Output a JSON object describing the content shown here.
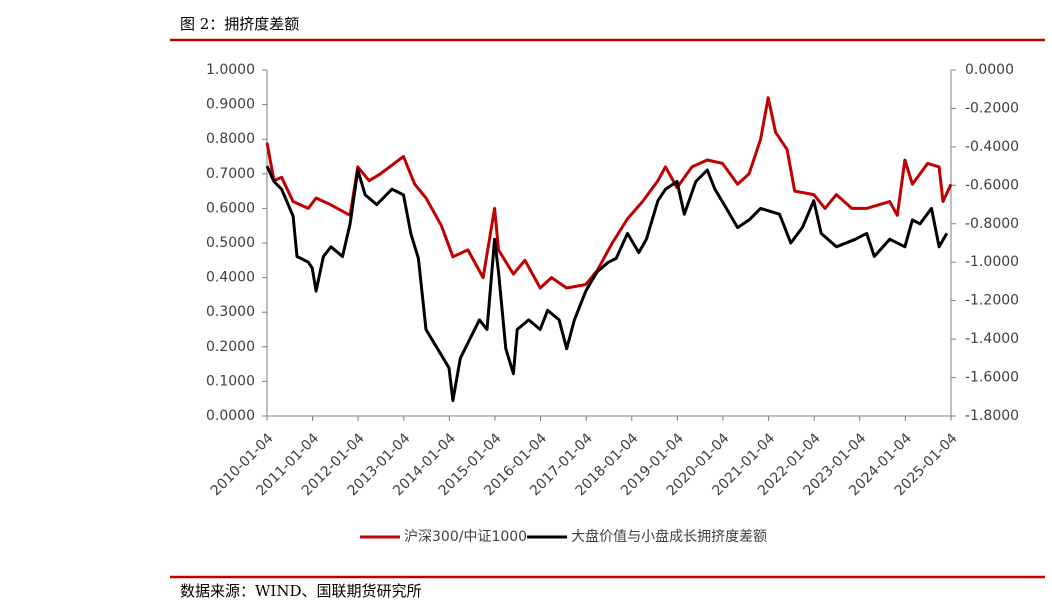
{
  "title": "图 2：拥挤度差额",
  "source": "数据来源：WIND、国联期货研究所",
  "chart_data": {
    "type": "line",
    "xlim": [
      "2010-01-04",
      "2025-01-04"
    ],
    "xticks": [
      "2010-01-04",
      "2011-01-04",
      "2012-01-04",
      "2013-01-04",
      "2014-01-04",
      "2015-01-04",
      "2016-01-04",
      "2017-01-04",
      "2018-01-04",
      "2019-01-04",
      "2020-01-04",
      "2021-01-04",
      "2022-01-04",
      "2023-01-04",
      "2024-01-04",
      "2025-01-04"
    ],
    "ylim": [
      0,
      1
    ],
    "yticks": [
      {
        "value": 0,
        "label": "0.0000"
      },
      {
        "value": 0.1,
        "label": "0.1000"
      },
      {
        "value": 0.2,
        "label": "0.2000"
      },
      {
        "value": 0.3,
        "label": "0.3000"
      },
      {
        "value": 0.4,
        "label": "0.4000"
      },
      {
        "value": 0.5,
        "label": "0.5000"
      },
      {
        "value": 0.6,
        "label": "0.6000"
      },
      {
        "value": 0.7,
        "label": "0.7000"
      },
      {
        "value": 0.8,
        "label": "0.8000"
      },
      {
        "value": 0.9,
        "label": "0.9000"
      },
      {
        "value": 1,
        "label": "1.0000"
      }
    ],
    "y2lim": [
      -1.8,
      0
    ],
    "y2ticks": [
      {
        "value": -1.8,
        "label": "-1.8000"
      },
      {
        "value": -1.6,
        "label": "-1.6000"
      },
      {
        "value": -1.4,
        "label": "-1.4000"
      },
      {
        "value": -1.2,
        "label": "-1.2000"
      },
      {
        "value": -1,
        "label": "-1.0000"
      },
      {
        "value": -0.8,
        "label": "-0.8000"
      },
      {
        "value": -0.6,
        "label": "-0.6000"
      },
      {
        "value": -0.4,
        "label": "-0.4000"
      },
      {
        "value": -0.2,
        "label": "-0.2000"
      },
      {
        "value": 0,
        "label": "0.0000"
      }
    ],
    "legend": "bottom",
    "series": [
      {
        "name": "沪深300/中证1000",
        "color": "#c00000",
        "x": [
          "2010-01-04",
          "2010-03-01",
          "2010-05-01",
          "2010-08-01",
          "2010-12-01",
          "2011-02-01",
          "2011-06-01",
          "2011-11-01",
          "2012-01-01",
          "2012-04-01",
          "2012-07-01",
          "2013-01-01",
          "2013-04-01",
          "2013-07-01",
          "2013-11-01",
          "2014-02-01",
          "2014-06-01",
          "2014-10-01",
          "2015-01-01",
          "2015-02-01",
          "2015-06-01",
          "2015-09-01",
          "2016-01-01",
          "2016-04-01",
          "2016-08-01",
          "2017-01-01",
          "2017-04-01",
          "2017-08-01",
          "2017-12-01",
          "2018-04-01",
          "2018-08-01",
          "2018-10-01",
          "2019-01-01",
          "2019-05-01",
          "2019-09-01",
          "2020-01-01",
          "2020-05-01",
          "2020-08-01",
          "2020-11-01",
          "2021-01-01",
          "2021-03-01",
          "2021-06-01",
          "2021-08-01",
          "2022-01-01",
          "2022-04-01",
          "2022-07-01",
          "2022-11-01",
          "2023-03-01",
          "2023-09-01",
          "2023-11-01",
          "2024-01-01",
          "2024-03-01",
          "2024-07-01",
          "2024-10-01",
          "2024-11-01",
          "2025-01-04"
        ],
        "values": [
          0.79,
          0.68,
          0.69,
          0.62,
          0.6,
          0.63,
          0.61,
          0.58,
          0.72,
          0.68,
          0.7,
          0.75,
          0.67,
          0.63,
          0.55,
          0.46,
          0.48,
          0.4,
          0.6,
          0.48,
          0.41,
          0.45,
          0.37,
          0.4,
          0.37,
          0.38,
          0.42,
          0.5,
          0.57,
          0.62,
          0.68,
          0.72,
          0.66,
          0.72,
          0.74,
          0.73,
          0.67,
          0.7,
          0.8,
          0.92,
          0.82,
          0.77,
          0.65,
          0.64,
          0.6,
          0.64,
          0.6,
          0.6,
          0.62,
          0.58,
          0.74,
          0.67,
          0.73,
          0.72,
          0.62,
          0.67
        ]
      },
      {
        "name": "大盘价值与小盘成长拥挤度差额",
        "color": "#000000",
        "axis": "y2",
        "x": [
          "2010-01-04",
          "2010-03-01",
          "2010-05-01",
          "2010-08-01",
          "2010-09-01",
          "2010-12-01",
          "2011-01-01",
          "2011-02-01",
          "2011-04-01",
          "2011-06-01",
          "2011-09-01",
          "2011-11-01",
          "2012-01-01",
          "2012-03-01",
          "2012-06-01",
          "2012-10-01",
          "2013-01-01",
          "2013-03-01",
          "2013-05-01",
          "2013-07-01",
          "2013-10-01",
          "2014-01-01",
          "2014-02-01",
          "2014-04-01",
          "2014-06-01",
          "2014-09-01",
          "2014-11-01",
          "2015-01-01",
          "2015-02-01",
          "2015-04-01",
          "2015-06-01",
          "2015-07-01",
          "2015-10-01",
          "2016-01-01",
          "2016-03-01",
          "2016-06-01",
          "2016-08-01",
          "2016-10-01",
          "2017-01-01",
          "2017-04-01",
          "2017-07-01",
          "2017-09-01",
          "2017-12-01",
          "2018-03-01",
          "2018-05-01",
          "2018-08-01",
          "2018-10-01",
          "2019-01-01",
          "2019-03-01",
          "2019-06-01",
          "2019-09-01",
          "2019-11-01",
          "2020-02-01",
          "2020-05-01",
          "2020-08-01",
          "2020-11-01",
          "2021-04-01",
          "2021-07-01",
          "2021-10-01",
          "2022-01-01",
          "2022-03-01",
          "2022-07-01",
          "2022-12-01",
          "2023-03-01",
          "2023-05-01",
          "2023-09-01",
          "2024-01-01",
          "2024-03-01",
          "2024-05-01",
          "2024-08-01",
          "2024-10-01",
          "2024-12-01"
        ],
        "values": [
          -0.5,
          -0.58,
          -0.62,
          -0.76,
          -0.97,
          -1.0,
          -1.03,
          -1.15,
          -0.97,
          -0.92,
          -0.97,
          -0.8,
          -0.52,
          -0.65,
          -0.7,
          -0.62,
          -0.65,
          -0.85,
          -0.98,
          -1.35,
          -1.45,
          -1.55,
          -1.72,
          -1.5,
          -1.42,
          -1.3,
          -1.35,
          -0.88,
          -1.05,
          -1.45,
          -1.58,
          -1.35,
          -1.3,
          -1.35,
          -1.25,
          -1.3,
          -1.45,
          -1.3,
          -1.15,
          -1.05,
          -1.0,
          -0.98,
          -0.85,
          -0.95,
          -0.88,
          -0.68,
          -0.62,
          -0.58,
          -0.75,
          -0.58,
          -0.52,
          -0.62,
          -0.72,
          -0.82,
          -0.78,
          -0.72,
          -0.75,
          -0.9,
          -0.82,
          -0.68,
          -0.85,
          -0.92,
          -0.88,
          -0.85,
          -0.97,
          -0.88,
          -0.92,
          -0.78,
          -0.8,
          -0.72,
          -0.92,
          -0.85
        ]
      }
    ]
  }
}
